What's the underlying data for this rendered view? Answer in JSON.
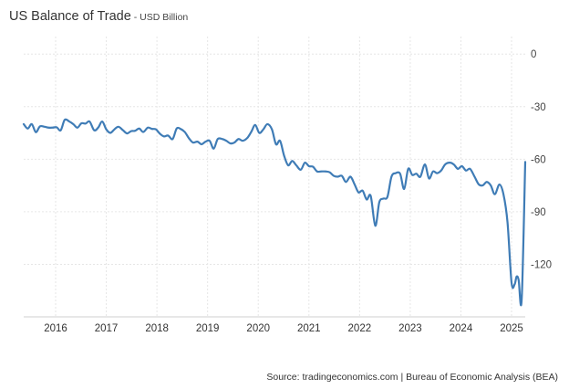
{
  "header": {
    "title": "US Balance of Trade",
    "separator": " - ",
    "subtitle": "USD Billion"
  },
  "footer": {
    "source": "Source: tradingeconomics.com | Bureau of Economic Analysis (BEA)"
  },
  "chart_data": {
    "type": "line",
    "title": "US Balance of Trade",
    "subtitle": "USD Billion",
    "xlabel": "",
    "ylabel": "",
    "xlim": [
      2015.37,
      2025.27
    ],
    "ylim": [
      -150,
      10
    ],
    "x_ticks": [
      {
        "value": 2016,
        "label": "2016"
      },
      {
        "value": 2017,
        "label": "2017"
      },
      {
        "value": 2018,
        "label": "2018"
      },
      {
        "value": 2019,
        "label": "2019"
      },
      {
        "value": 2020,
        "label": "2020"
      },
      {
        "value": 2021,
        "label": "2021"
      },
      {
        "value": 2022,
        "label": "2022"
      },
      {
        "value": 2023,
        "label": "2023"
      },
      {
        "value": 2024,
        "label": "2024"
      },
      {
        "value": 2025,
        "label": "2025"
      }
    ],
    "y_ticks": [
      {
        "value": 0,
        "label": "0"
      },
      {
        "value": -30,
        "label": "-30"
      },
      {
        "value": -60,
        "label": "-60"
      },
      {
        "value": -90,
        "label": "-90"
      },
      {
        "value": -120,
        "label": "-120"
      }
    ],
    "grid": true,
    "line_color": "#3f7cb6",
    "series": [
      {
        "name": "",
        "points": [
          [
            2015.37,
            -40
          ],
          [
            2015.45,
            -42.5
          ],
          [
            2015.53,
            -40
          ],
          [
            2015.61,
            -44.6
          ],
          [
            2015.69,
            -41.3
          ],
          [
            2015.78,
            -41.5
          ],
          [
            2015.86,
            -42
          ],
          [
            2015.94,
            -42
          ],
          [
            2016.02,
            -41.8
          ],
          [
            2016.1,
            -43.5
          ],
          [
            2016.18,
            -37.5
          ],
          [
            2016.27,
            -38.5
          ],
          [
            2016.35,
            -40
          ],
          [
            2016.43,
            -42
          ],
          [
            2016.51,
            -39.5
          ],
          [
            2016.59,
            -39.7
          ],
          [
            2016.67,
            -38.5
          ],
          [
            2016.76,
            -43.5
          ],
          [
            2016.84,
            -42
          ],
          [
            2016.92,
            -38.5
          ],
          [
            2017.0,
            -43
          ],
          [
            2017.08,
            -45
          ],
          [
            2017.16,
            -43
          ],
          [
            2017.24,
            -41.5
          ],
          [
            2017.33,
            -43.5
          ],
          [
            2017.41,
            -45.3
          ],
          [
            2017.49,
            -44
          ],
          [
            2017.57,
            -43.8
          ],
          [
            2017.65,
            -42.5
          ],
          [
            2017.73,
            -44.5
          ],
          [
            2017.82,
            -42
          ],
          [
            2017.9,
            -42.7
          ],
          [
            2017.98,
            -43
          ],
          [
            2018.06,
            -45.5
          ],
          [
            2018.14,
            -47
          ],
          [
            2018.22,
            -46.5
          ],
          [
            2018.31,
            -48.5
          ],
          [
            2018.39,
            -42.5
          ],
          [
            2018.47,
            -42.8
          ],
          [
            2018.55,
            -44.5
          ],
          [
            2018.63,
            -48
          ],
          [
            2018.71,
            -50.5
          ],
          [
            2018.8,
            -50
          ],
          [
            2018.88,
            -51.5
          ],
          [
            2018.96,
            -50
          ],
          [
            2019.04,
            -49.5
          ],
          [
            2019.12,
            -54
          ],
          [
            2019.2,
            -48.5
          ],
          [
            2019.29,
            -48.5
          ],
          [
            2019.37,
            -49.5
          ],
          [
            2019.45,
            -51
          ],
          [
            2019.53,
            -50.5
          ],
          [
            2019.61,
            -48.5
          ],
          [
            2019.69,
            -49.5
          ],
          [
            2019.78,
            -48
          ],
          [
            2019.86,
            -44.5
          ],
          [
            2019.94,
            -40.5
          ],
          [
            2020.02,
            -45
          ],
          [
            2020.1,
            -43
          ],
          [
            2020.18,
            -40
          ],
          [
            2020.27,
            -43
          ],
          [
            2020.35,
            -51.5
          ],
          [
            2020.43,
            -49.5
          ],
          [
            2020.51,
            -58
          ],
          [
            2020.59,
            -63.5
          ],
          [
            2020.67,
            -61
          ],
          [
            2020.75,
            -63.5
          ],
          [
            2020.84,
            -66
          ],
          [
            2020.92,
            -62
          ],
          [
            2021.0,
            -64
          ],
          [
            2021.08,
            -64.3
          ],
          [
            2021.16,
            -67
          ],
          [
            2021.24,
            -67
          ],
          [
            2021.33,
            -67
          ],
          [
            2021.41,
            -67.5
          ],
          [
            2021.49,
            -69.5
          ],
          [
            2021.57,
            -70
          ],
          [
            2021.65,
            -69.5
          ],
          [
            2021.73,
            -73
          ],
          [
            2021.82,
            -70
          ],
          [
            2021.9,
            -74.3
          ],
          [
            2021.98,
            -79
          ],
          [
            2022.06,
            -78
          ],
          [
            2022.14,
            -83
          ],
          [
            2022.22,
            -81
          ],
          [
            2022.31,
            -98
          ],
          [
            2022.39,
            -84.5
          ],
          [
            2022.47,
            -82.5
          ],
          [
            2022.55,
            -81.5
          ],
          [
            2022.63,
            -70
          ],
          [
            2022.71,
            -68
          ],
          [
            2022.8,
            -68.3
          ],
          [
            2022.88,
            -77
          ],
          [
            2022.96,
            -65.5
          ],
          [
            2023.04,
            -69
          ],
          [
            2023.12,
            -68.3
          ],
          [
            2023.2,
            -70
          ],
          [
            2023.29,
            -63
          ],
          [
            2023.37,
            -71
          ],
          [
            2023.45,
            -67
          ],
          [
            2023.53,
            -68
          ],
          [
            2023.61,
            -66.5
          ],
          [
            2023.69,
            -63
          ],
          [
            2023.78,
            -62
          ],
          [
            2023.86,
            -63
          ],
          [
            2023.94,
            -65.5
          ],
          [
            2024.02,
            -64
          ],
          [
            2024.1,
            -66.5
          ],
          [
            2024.18,
            -65.5
          ],
          [
            2024.27,
            -70
          ],
          [
            2024.35,
            -74.3
          ],
          [
            2024.43,
            -75
          ],
          [
            2024.51,
            -73
          ],
          [
            2024.59,
            -75
          ],
          [
            2024.67,
            -80
          ],
          [
            2024.76,
            -74.5
          ],
          [
            2024.84,
            -80
          ],
          [
            2024.92,
            -96
          ],
          [
            2025.0,
            -130.5
          ],
          [
            2025.06,
            -131.5
          ],
          [
            2025.1,
            -127
          ],
          [
            2025.14,
            -129
          ],
          [
            2025.2,
            -140
          ],
          [
            2025.27,
            -61.6
          ]
        ]
      }
    ]
  }
}
